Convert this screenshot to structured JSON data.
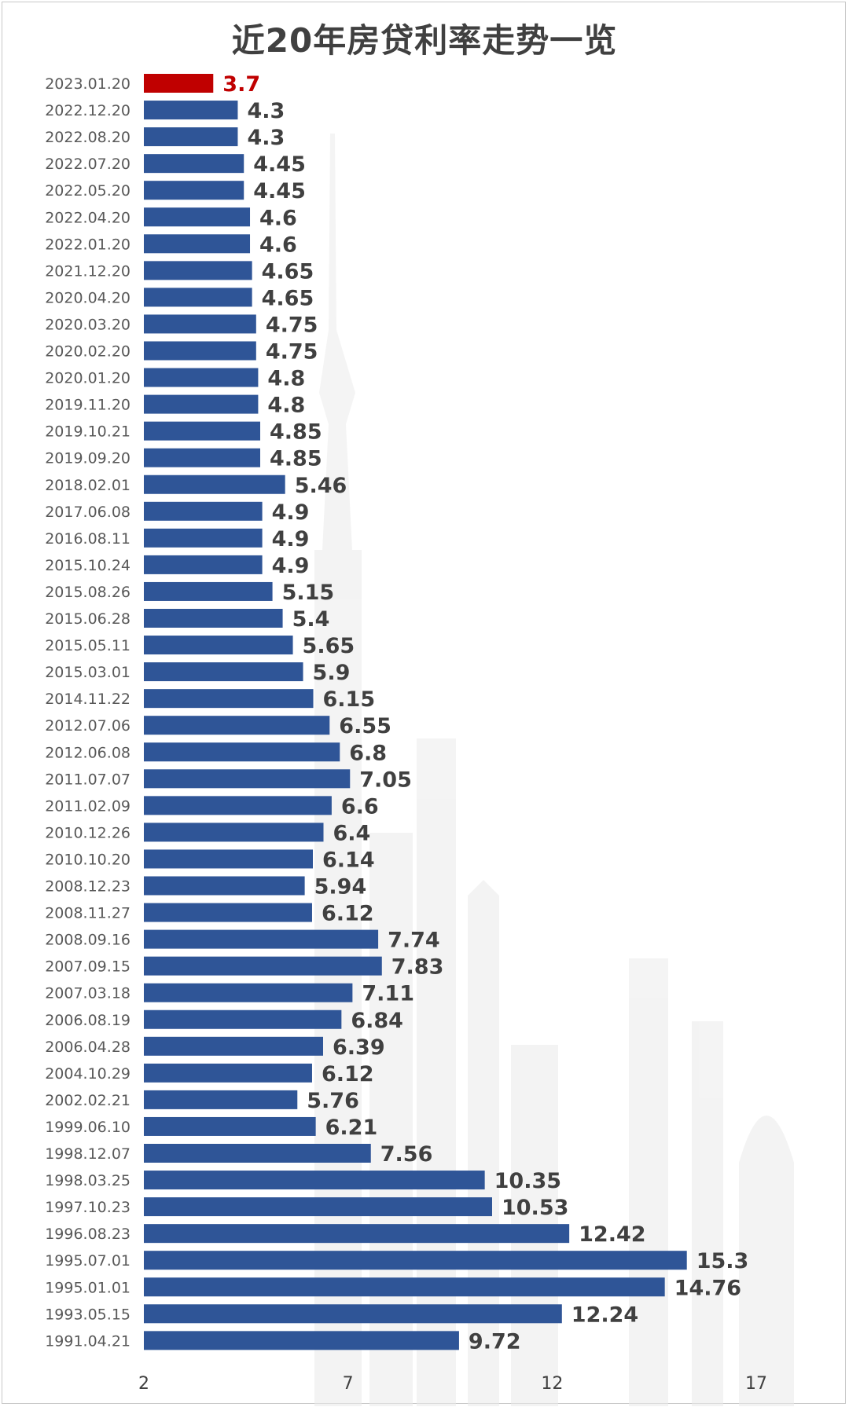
{
  "chart_data": {
    "type": "bar",
    "orientation": "horizontal",
    "title": "近20年房贷利率走势一览",
    "xlabel": "",
    "ylabel": "",
    "xlim": [
      2,
      17
    ],
    "ticks": [
      "2",
      "7",
      "12",
      "17"
    ],
    "grid": false,
    "legend": "none",
    "highlight_index": 0,
    "colors": {
      "bar": "#2f5597",
      "highlight": "#c00000",
      "label": "#404040",
      "highlight_label": "#c00000"
    },
    "categories": [
      "2023.01.20",
      "2022.12.20",
      "2022.08.20",
      "2022.07.20",
      "2022.05.20",
      "2022.04.20",
      "2022.01.20",
      "2021.12.20",
      "2020.04.20",
      "2020.03.20",
      "2020.02.20",
      "2020.01.20",
      "2019.11.20",
      "2019.10.21",
      "2019.09.20",
      "2018.02.01",
      "2017.06.08",
      "2016.08.11",
      "2015.10.24",
      "2015.08.26",
      "2015.06.28",
      "2015.05.11",
      "2015.03.01",
      "2014.11.22",
      "2012.07.06",
      "2012.06.08",
      "2011.07.07",
      "2011.02.09",
      "2010.12.26",
      "2010.10.20",
      "2008.12.23",
      "2008.11.27",
      "2008.09.16",
      "2007.09.15",
      "2007.03.18",
      "2006.08.19",
      "2006.04.28",
      "2004.10.29",
      "2002.02.21",
      "1999.06.10",
      "1998.12.07",
      "1998.03.25",
      "1997.10.23",
      "1996.08.23",
      "1995.07.01",
      "1995.01.01",
      "1993.05.15",
      "1991.04.21"
    ],
    "values": [
      3.7,
      4.3,
      4.3,
      4.45,
      4.45,
      4.6,
      4.6,
      4.65,
      4.65,
      4.75,
      4.75,
      4.8,
      4.8,
      4.85,
      4.85,
      5.46,
      4.9,
      4.9,
      4.9,
      5.15,
      5.4,
      5.65,
      5.9,
      6.15,
      6.55,
      6.8,
      7.05,
      6.6,
      6.4,
      6.14,
      5.94,
      6.12,
      7.74,
      7.83,
      7.11,
      6.84,
      6.39,
      6.12,
      5.76,
      6.21,
      7.56,
      10.35,
      10.53,
      12.42,
      15.3,
      14.76,
      12.24,
      9.72
    ],
    "value_labels": [
      "3.7",
      "4.3",
      "4.3",
      "4.45",
      "4.45",
      "4.6",
      "4.6",
      "4.65",
      "4.65",
      "4.75",
      "4.75",
      "4.8",
      "4.8",
      "4.85",
      "4.85",
      "5.46",
      "4.9",
      "4.9",
      "4.9",
      "5.15",
      "5.4",
      "5.65",
      "5.9",
      "6.15",
      "6.55",
      "6.8",
      "7.05",
      "6.6",
      "6.4",
      "6.14",
      "5.94",
      "6.12",
      "7.74",
      "7.83",
      "7.11",
      "6.84",
      "6.39",
      "6.12",
      "5.76",
      "6.21",
      "7.56",
      "10.35",
      "10.53",
      "12.42",
      "15.3",
      "14.76",
      "12.24",
      "9.72"
    ]
  }
}
